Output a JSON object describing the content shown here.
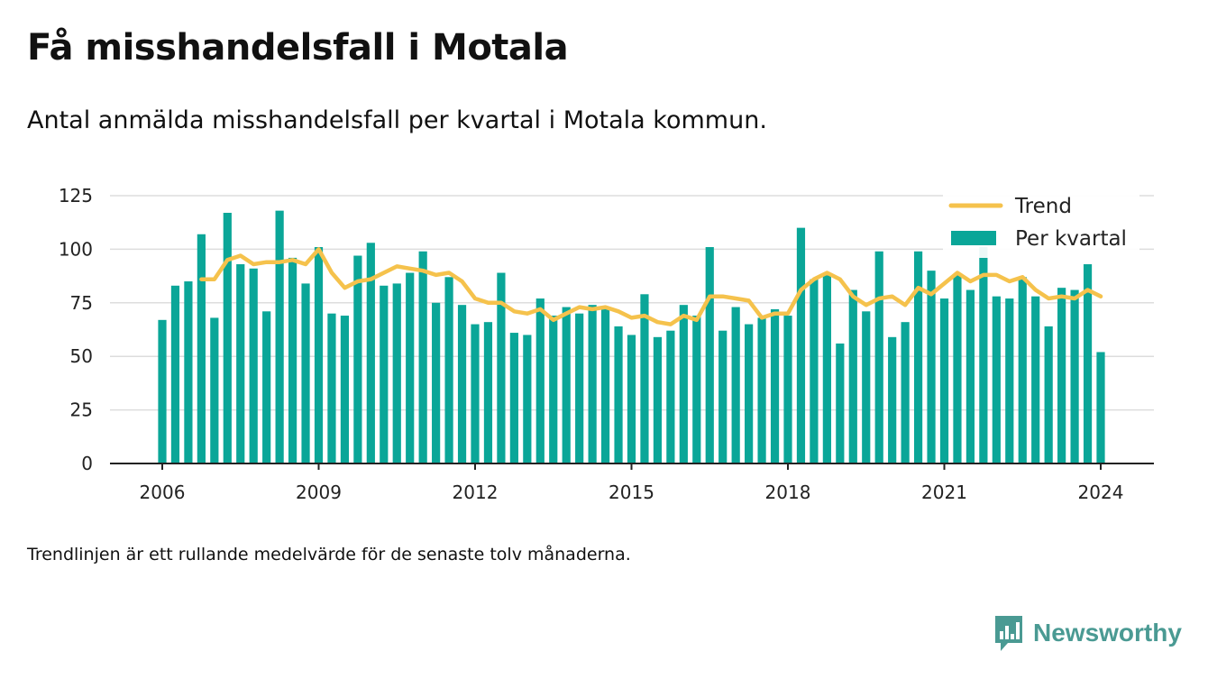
{
  "title": "Få misshandelsfall i Motala",
  "subtitle": "Antal anmälda misshandelsfall per kvartal i Motala kommun.",
  "note": "Trendlinjen är ett rullande medelvärde för de senaste tolv månaderna.",
  "brand": {
    "name": "Newsworthy",
    "icon": "newsworthy-logo-icon",
    "color": "#4a9a93"
  },
  "colors": {
    "bar": "#0aa698",
    "trend": "#f5c24c",
    "grid": "#dddddd",
    "axis": "#222222"
  },
  "chart_data": {
    "type": "bar",
    "grid": true,
    "legend_position": "top-right",
    "ylim": [
      0,
      125
    ],
    "y_ticks": [
      0,
      25,
      50,
      75,
      100,
      125
    ],
    "x_ticks": [
      "2006",
      "2009",
      "2012",
      "2015",
      "2018",
      "2021",
      "2024"
    ],
    "x_tick_years": [
      2006,
      2009,
      2012,
      2015,
      2018,
      2021,
      2024
    ],
    "x_start": "2006 Q1",
    "x": [
      "2006 Q1",
      "2006 Q2",
      "2006 Q3",
      "2006 Q4",
      "2007 Q1",
      "2007 Q2",
      "2007 Q3",
      "2007 Q4",
      "2008 Q1",
      "2008 Q2",
      "2008 Q3",
      "2008 Q4",
      "2009 Q1",
      "2009 Q2",
      "2009 Q3",
      "2009 Q4",
      "2010 Q1",
      "2010 Q2",
      "2010 Q3",
      "2010 Q4",
      "2011 Q1",
      "2011 Q2",
      "2011 Q3",
      "2011 Q4",
      "2012 Q1",
      "2012 Q2",
      "2012 Q3",
      "2012 Q4",
      "2013 Q1",
      "2013 Q2",
      "2013 Q3",
      "2013 Q4",
      "2014 Q1",
      "2014 Q2",
      "2014 Q3",
      "2014 Q4",
      "2015 Q1",
      "2015 Q2",
      "2015 Q3",
      "2015 Q4",
      "2016 Q1",
      "2016 Q2",
      "2016 Q3",
      "2016 Q4",
      "2017 Q1",
      "2017 Q2",
      "2017 Q3",
      "2017 Q4",
      "2018 Q1",
      "2018 Q2",
      "2018 Q3",
      "2018 Q4",
      "2019 Q1",
      "2019 Q2",
      "2019 Q3",
      "2019 Q4",
      "2020 Q1",
      "2020 Q2",
      "2020 Q3",
      "2020 Q4",
      "2021 Q1",
      "2021 Q2",
      "2021 Q3",
      "2021 Q4",
      "2022 Q1",
      "2022 Q2",
      "2022 Q3",
      "2022 Q4",
      "2023 Q1",
      "2023 Q2",
      "2023 Q3",
      "2023 Q4",
      "2024 Q1"
    ],
    "series": [
      {
        "name": "Per kvartal",
        "type": "bar",
        "values": [
          67,
          83,
          85,
          107,
          68,
          117,
          93,
          91,
          71,
          118,
          96,
          84,
          101,
          70,
          69,
          97,
          103,
          83,
          84,
          89,
          99,
          75,
          87,
          74,
          65,
          66,
          89,
          61,
          60,
          77,
          69,
          73,
          70,
          74,
          72,
          64,
          60,
          79,
          59,
          62,
          74,
          69,
          101,
          62,
          73,
          65,
          68,
          72,
          69,
          110,
          86,
          89,
          56,
          81,
          71,
          99,
          59,
          66,
          99,
          90,
          77,
          88,
          81,
          101,
          78,
          77,
          87,
          78,
          64,
          82,
          81,
          93,
          52
        ]
      },
      {
        "name": "Trend",
        "type": "line",
        "values": [
          null,
          null,
          null,
          86,
          86,
          95,
          97,
          93,
          94,
          94,
          95,
          93,
          100,
          89,
          82,
          85,
          86,
          89,
          92,
          91,
          90,
          88,
          89,
          85,
          77,
          75,
          75,
          71,
          70,
          72,
          67,
          70,
          73,
          72,
          73,
          71,
          68,
          69,
          66,
          65,
          69,
          67,
          78,
          78,
          77,
          76,
          68,
          70,
          70,
          81,
          86,
          89,
          86,
          78,
          74,
          77,
          78,
          74,
          82,
          79,
          84,
          89,
          85,
          88,
          88,
          85,
          87,
          81,
          77,
          78,
          77,
          81,
          78
        ]
      }
    ]
  }
}
